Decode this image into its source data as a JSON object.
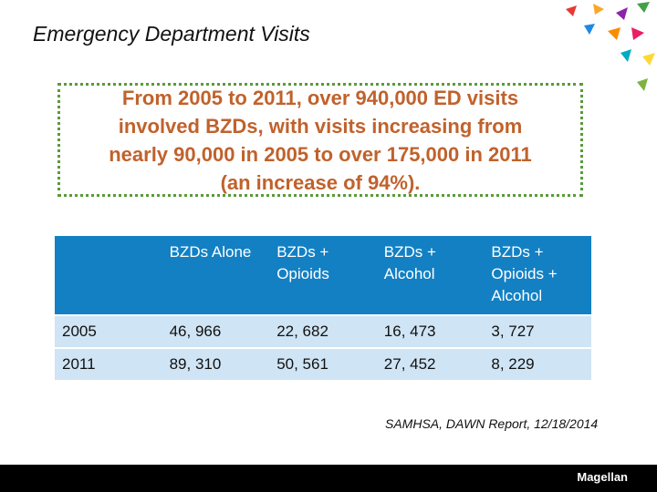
{
  "header": {
    "title": "Emergency Department Visits"
  },
  "callout": {
    "text": "From 2005 to 2011, over 940,000 ED visits involved BZDs, with visits increasing from nearly 90,000 in 2005 to over 175,000 in 2011 (an increase of 94%)."
  },
  "table": {
    "columns": [
      "BZDs Alone",
      "BZDs + Opioids",
      "BZDs + Alcohol",
      "BZDs + Opioids + Alcohol"
    ],
    "rows": [
      [
        "2005",
        "46, 966",
        "22, 682",
        "16, 473",
        "3, 727"
      ],
      [
        "2011",
        "89, 310",
        "50, 561",
        "27, 452",
        "8, 229"
      ]
    ]
  },
  "source": {
    "text": "SAMHSA, DAWN Report, 12/18/2014"
  },
  "footer": {
    "logo": "Magellan"
  }
}
